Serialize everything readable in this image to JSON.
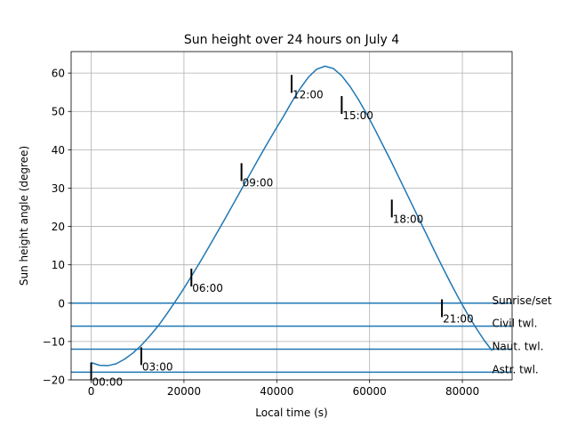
{
  "chart_data": {
    "type": "line",
    "title": "Sun height over 24 hours on July 4",
    "xlabel": "Local time (s)",
    "ylabel": "Sun height angle (degree)",
    "xlim": [
      -4320,
      90720
    ],
    "ylim": [
      -20,
      65.6
    ],
    "xticks": [
      0,
      20000,
      40000,
      60000,
      80000
    ],
    "yticks": [
      -20,
      -10,
      0,
      10,
      20,
      30,
      40,
      50,
      60
    ],
    "grid": true,
    "series": [
      {
        "color": "#1f77b4",
        "x": [
          0,
          1800,
          3600,
          5400,
          7200,
          9000,
          10800,
          12600,
          14400,
          16200,
          18000,
          19800,
          21600,
          23400,
          25200,
          27000,
          28800,
          30600,
          32400,
          34200,
          36000,
          37800,
          39600,
          41400,
          43200,
          45000,
          46800,
          48600,
          50400,
          52200,
          54000,
          55800,
          57600,
          59400,
          61200,
          63000,
          64800,
          66600,
          68400,
          70200,
          72000,
          73800,
          75600,
          77400,
          79200,
          81000,
          82800,
          84600,
          86400
        ],
        "y": [
          -15.5,
          -16.2,
          -16.3,
          -15.8,
          -14.6,
          -13.0,
          -11.0,
          -8.6,
          -6.0,
          -3.0,
          0.2,
          3.5,
          7.0,
          10.6,
          14.3,
          18.1,
          21.9,
          25.8,
          29.7,
          33.6,
          37.5,
          41.3,
          45.0,
          48.6,
          52.4,
          55.9,
          58.9,
          61.0,
          61.8,
          61.2,
          59.3,
          56.5,
          53.1,
          49.3,
          45.2,
          40.9,
          36.6,
          32.1,
          27.6,
          23.1,
          18.6,
          14.1,
          9.7,
          5.4,
          1.3,
          -2.6,
          -6.2,
          -9.5,
          -12.4
        ]
      }
    ],
    "time_markers": [
      {
        "x": 0,
        "y": -15.5,
        "label": "00:00"
      },
      {
        "x": 10800,
        "y": -11.5,
        "label": "03:00"
      },
      {
        "x": 21600,
        "y": 9.0,
        "label": "06:00"
      },
      {
        "x": 32400,
        "y": 36.5,
        "label": "09:00"
      },
      {
        "x": 43200,
        "y": 59.5,
        "label": "12:00"
      },
      {
        "x": 54000,
        "y": 54.0,
        "label": "15:00"
      },
      {
        "x": 64800,
        "y": 27.0,
        "label": "18:00"
      },
      {
        "x": 75600,
        "y": 1.0,
        "label": "21:00"
      }
    ],
    "hlines": [
      {
        "y": 0,
        "label": "Sunrise/set"
      },
      {
        "y": -6,
        "label": "Civil twl."
      },
      {
        "y": -12,
        "label": "Naut. twl."
      },
      {
        "y": -18,
        "label": "Astr. twl."
      }
    ]
  }
}
